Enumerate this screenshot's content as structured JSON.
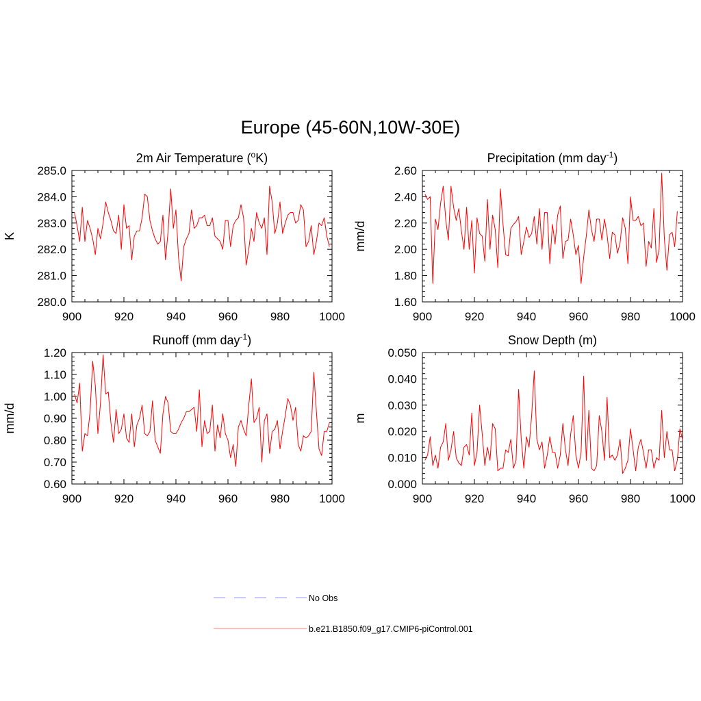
{
  "figure_title": "Europe (45-60N,10W-30E)",
  "colors": {
    "model": "#ff0000",
    "obs": "#aaaaff",
    "axis": "#000000"
  },
  "legend": [
    {
      "label": "No Obs",
      "style": "dashed",
      "color": "#aaaaff"
    },
    {
      "label": "b.e21.B1850.f09_g17.CMIP6-piControl.001",
      "style": "solid",
      "color": "#ff9999"
    }
  ],
  "chart_data": [
    {
      "type": "line",
      "title": "2m Air Temperature (",
      "title_sup": "o",
      "title_after": "K)",
      "ylabel": "K",
      "xlim": [
        900,
        1000
      ],
      "ylim": [
        280.0,
        285.0
      ],
      "xticks": [
        "900",
        "920",
        "940",
        "960",
        "980",
        "1000"
      ],
      "yticks": [
        "280.0",
        "281.0",
        "282.0",
        "283.0",
        "284.0",
        "285.0"
      ],
      "x_start": 901,
      "series": [
        {
          "color": "#ff0000",
          "values": [
            283.4,
            282.9,
            282.3,
            283.6,
            282.3,
            283.1,
            282.8,
            282.4,
            281.8,
            282.8,
            282.4,
            283.0,
            283.8,
            283.4,
            283.1,
            282.7,
            282.6,
            283.3,
            282.0,
            283.7,
            282.8,
            282.9,
            281.6,
            282.5,
            282.7,
            282.7,
            283.2,
            284.1,
            284.0,
            283.1,
            282.7,
            282.4,
            282.2,
            282.3,
            283.3,
            281.6,
            282.7,
            284.3,
            282.8,
            283.5,
            281.7,
            280.8,
            282.1,
            282.4,
            282.6,
            283.5,
            282.8,
            282.9,
            283.2,
            283.2,
            283.3,
            282.9,
            282.9,
            283.2,
            282.5,
            282.4,
            282.3,
            282.0,
            283.1,
            283.1,
            282.1,
            282.9,
            283.1,
            283.2,
            283.7,
            283.2,
            281.4,
            282.0,
            282.8,
            282.3,
            283.4,
            283.0,
            282.8,
            283.2,
            281.8,
            284.4,
            283.8,
            282.6,
            283.0,
            283.8,
            282.6,
            283.0,
            283.3,
            283.4,
            283.4,
            283.0,
            283.1,
            283.7,
            283.5,
            282.1,
            282.3,
            282.9,
            281.8,
            282.3,
            283.0,
            282.9,
            283.2,
            282.5,
            282.1
          ]
        }
      ]
    },
    {
      "type": "line",
      "title": "Precipitation (mm day",
      "title_sup": "-1",
      "title_after": ")",
      "ylabel": "mm/d",
      "xlim": [
        900,
        1000
      ],
      "ylim": [
        1.6,
        2.6
      ],
      "xticks": [
        "900",
        "920",
        "940",
        "960",
        "980",
        "1000"
      ],
      "yticks": [
        "1.60",
        "1.80",
        "2.00",
        "2.20",
        "2.40",
        "2.60"
      ],
      "x_start": 901,
      "series": [
        {
          "color": "#ff0000",
          "values": [
            2.42,
            2.38,
            2.4,
            1.74,
            2.23,
            2.15,
            2.35,
            2.48,
            2.22,
            2.07,
            2.48,
            2.32,
            2.22,
            2.31,
            2.14,
            2.0,
            2.32,
            2.0,
            2.22,
            1.82,
            2.24,
            2.12,
            2.1,
            1.91,
            2.38,
            2.0,
            2.26,
            2.15,
            1.86,
            2.46,
            2.19,
            1.96,
            1.95,
            2.16,
            2.19,
            2.21,
            2.25,
            1.96,
            2.06,
            2.17,
            2.09,
            2.12,
            2.25,
            2.04,
            2.31,
            2.0,
            2.28,
            2.28,
            1.89,
            2.19,
            2.04,
            2.26,
            2.33,
            1.93,
            2.06,
            2.07,
            2.23,
            2.11,
            1.96,
            2.03,
            1.74,
            1.94,
            2.1,
            2.3,
            2.15,
            2.06,
            2.23,
            2.23,
            2.07,
            2.23,
            2.11,
            1.93,
            2.13,
            2.11,
            1.97,
            2.05,
            2.24,
            2.16,
            1.89,
            2.4,
            2.22,
            2.22,
            2.25,
            2.18,
            2.2,
            1.87,
            2.06,
            2.01,
            2.31,
            1.9,
            2.0,
            2.58,
            2.09,
            1.84,
            2.11,
            2.13,
            2.02,
            2.29
          ]
        }
      ]
    },
    {
      "type": "line",
      "title": "Runoff (mm day",
      "title_sup": "-1",
      "title_after": ")",
      "ylabel": "mm/d",
      "xlim": [
        900,
        1000
      ],
      "ylim": [
        0.6,
        1.2
      ],
      "xticks": [
        "900",
        "920",
        "940",
        "960",
        "980",
        "1000"
      ],
      "yticks": [
        "0.60",
        "0.70",
        "0.80",
        "0.90",
        "1.00",
        "1.10",
        "1.20"
      ],
      "x_start": 901,
      "series": [
        {
          "color": "#ff0000",
          "values": [
            1.01,
            0.97,
            1.06,
            0.75,
            0.83,
            0.82,
            0.93,
            1.16,
            1.05,
            0.83,
            0.97,
            1.19,
            1.01,
            1.02,
            0.88,
            0.79,
            0.94,
            0.83,
            0.85,
            0.92,
            0.81,
            0.79,
            0.92,
            0.77,
            0.87,
            0.9,
            0.96,
            0.83,
            0.82,
            0.84,
            0.98,
            0.8,
            0.77,
            0.74,
            0.92,
            1.0,
            0.97,
            0.84,
            0.83,
            0.83,
            0.85,
            0.88,
            0.9,
            0.93,
            0.93,
            0.94,
            0.95,
            0.84,
            1.03,
            0.77,
            0.89,
            0.83,
            0.84,
            0.96,
            0.75,
            0.87,
            0.81,
            0.92,
            0.83,
            0.8,
            0.72,
            0.78,
            0.68,
            0.86,
            0.89,
            0.85,
            0.82,
            0.96,
            1.08,
            0.88,
            0.9,
            0.95,
            0.7,
            0.89,
            0.92,
            0.74,
            0.84,
            0.85,
            0.89,
            0.76,
            0.84,
            0.91,
            0.99,
            0.96,
            0.89,
            0.95,
            0.78,
            0.75,
            0.82,
            0.81,
            0.82,
            0.84,
            1.11,
            0.93,
            0.76,
            0.73,
            0.84,
            0.84,
            0.88
          ]
        }
      ]
    },
    {
      "type": "line",
      "title": "Snow Depth (m)",
      "title_sup": "",
      "title_after": "",
      "ylabel": "m",
      "xlim": [
        900,
        1000
      ],
      "ylim": [
        0.0,
        0.05
      ],
      "xticks": [
        "900",
        "920",
        "940",
        "960",
        "980",
        "1000"
      ],
      "yticks": [
        "0.000",
        "0.010",
        "0.020",
        "0.030",
        "0.040",
        "0.050"
      ],
      "x_start": 901,
      "series": [
        {
          "color": "#ff0000",
          "values": [
            0.009,
            0.011,
            0.018,
            0.007,
            0.011,
            0.006,
            0.014,
            0.016,
            0.023,
            0.009,
            0.013,
            0.02,
            0.01,
            0.008,
            0.007,
            0.014,
            0.015,
            0.011,
            0.027,
            0.007,
            0.012,
            0.03,
            0.019,
            0.007,
            0.014,
            0.009,
            0.023,
            0.021,
            0.005,
            0.006,
            0.006,
            0.013,
            0.012,
            0.017,
            0.006,
            0.009,
            0.036,
            0.017,
            0.006,
            0.018,
            0.014,
            0.026,
            0.043,
            0.017,
            0.013,
            0.016,
            0.006,
            0.011,
            0.018,
            0.012,
            0.012,
            0.006,
            0.011,
            0.023,
            0.013,
            0.007,
            0.019,
            0.026,
            0.011,
            0.006,
            0.012,
            0.041,
            0.009,
            0.028,
            0.006,
            0.005,
            0.007,
            0.026,
            0.02,
            0.009,
            0.033,
            0.01,
            0.011,
            0.009,
            0.011,
            0.017,
            0.004,
            0.006,
            0.009,
            0.021,
            0.013,
            0.005,
            0.014,
            0.017,
            0.012,
            0.006,
            0.013,
            0.013,
            0.006,
            0.01,
            0.009,
            0.028,
            0.01,
            0.02,
            0.013,
            0.013,
            0.005,
            0.009,
            0.021,
            0.017
          ]
        }
      ]
    }
  ]
}
